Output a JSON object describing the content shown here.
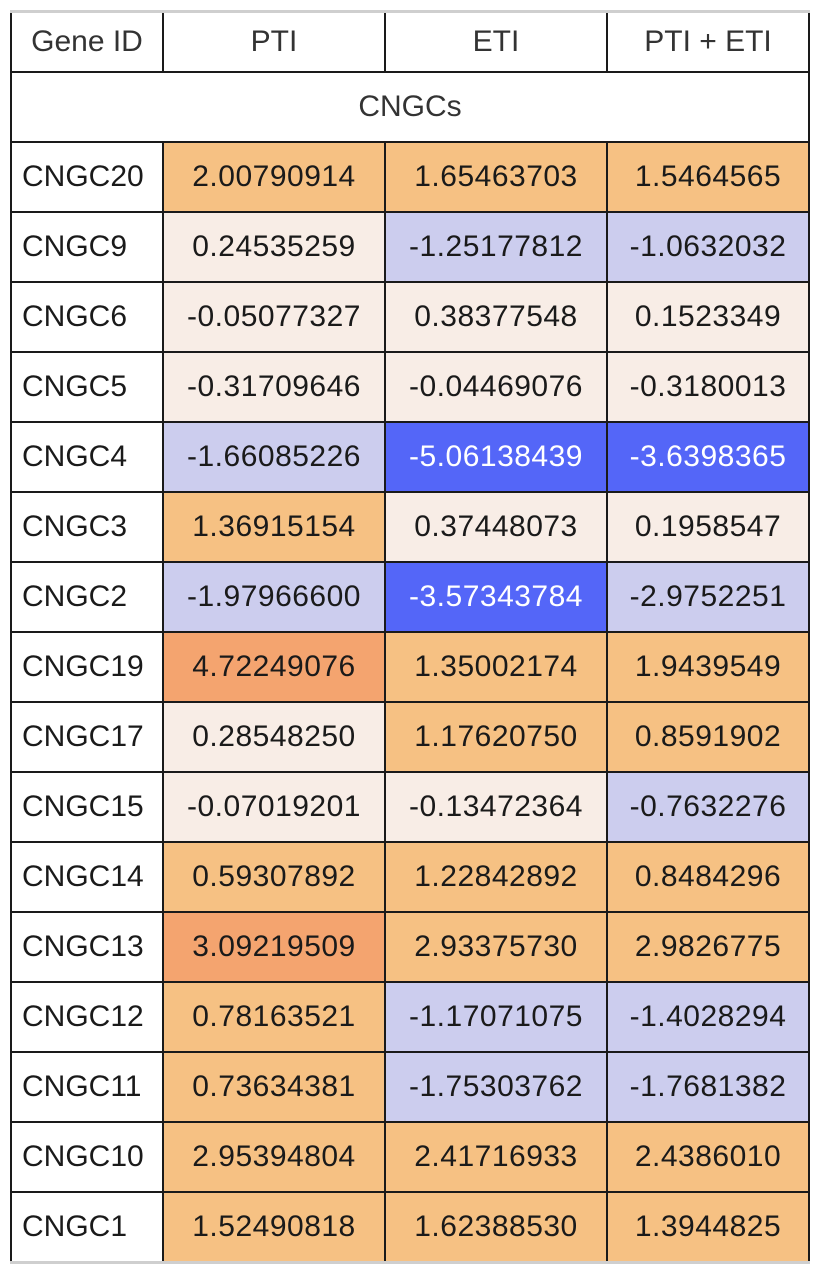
{
  "chart_data": {
    "type": "table",
    "columns": [
      "Gene ID",
      "PTI",
      "ETI",
      "PTI + ETI"
    ],
    "group_label": "CNGCs",
    "rows": [
      {
        "gene": "CNGC20",
        "values": [
          "2.00790914",
          "1.65463703",
          "1.5464565"
        ]
      },
      {
        "gene": "CNGC9",
        "values": [
          "0.24535259",
          "-1.25177812",
          "-1.0632032"
        ]
      },
      {
        "gene": "CNGC6",
        "values": [
          "-0.05077327",
          "0.38377548",
          "0.1523349"
        ]
      },
      {
        "gene": "CNGC5",
        "values": [
          "-0.31709646",
          "-0.04469076",
          "-0.3180013"
        ]
      },
      {
        "gene": "CNGC4",
        "values": [
          "-1.66085226",
          "-5.06138439",
          "-3.6398365"
        ]
      },
      {
        "gene": "CNGC3",
        "values": [
          "1.36915154",
          "0.37448073",
          "0.1958547"
        ]
      },
      {
        "gene": "CNGC2",
        "values": [
          "-1.97966600",
          "-3.57343784",
          "-2.9752251"
        ]
      },
      {
        "gene": "CNGC19",
        "values": [
          "4.72249076",
          "1.35002174",
          "1.9439549"
        ]
      },
      {
        "gene": "CNGC17",
        "values": [
          "0.28548250",
          "1.17620750",
          "0.8591902"
        ]
      },
      {
        "gene": "CNGC15",
        "values": [
          "-0.07019201",
          "-0.13472364",
          "-0.7632276"
        ]
      },
      {
        "gene": "CNGC14",
        "values": [
          "0.59307892",
          "1.22842892",
          "0.8484296"
        ]
      },
      {
        "gene": "CNGC13",
        "values": [
          "3.09219509",
          "2.93375730",
          "2.9826775"
        ]
      },
      {
        "gene": "CNGC12",
        "values": [
          "0.78163521",
          "-1.17071075",
          "-1.4028294"
        ]
      },
      {
        "gene": "CNGC11",
        "values": [
          "0.73634381",
          "-1.75303762",
          "-1.7681382"
        ]
      },
      {
        "gene": "CNGC10",
        "values": [
          "2.95394804",
          "2.41716933",
          "2.4386010"
        ]
      },
      {
        "gene": "CNGC1",
        "values": [
          "1.52490818",
          "1.62388530",
          "1.3944825"
        ]
      }
    ],
    "cell_colors": {
      "strong_positive": "#f4a46f",
      "positive": "#f6c183",
      "neutral": "#f8ede6",
      "negative": "#cccdee",
      "strong_negative": "#5466f8"
    }
  }
}
